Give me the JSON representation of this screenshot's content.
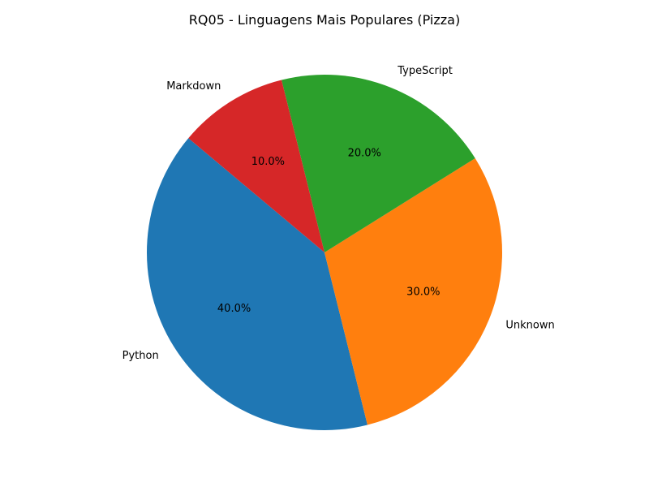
{
  "chart_data": {
    "type": "pie",
    "title": "RQ05 - Linguagens Mais Populares (Pizza)",
    "slices": [
      {
        "label": "Python",
        "value": 40.0,
        "pct_label": "40.0%",
        "color": "#1f77b4"
      },
      {
        "label": "Unknown",
        "value": 30.0,
        "pct_label": "30.0%",
        "color": "#ff7f0e"
      },
      {
        "label": "TypeScript",
        "value": 20.0,
        "pct_label": "20.0%",
        "color": "#2ca02c"
      },
      {
        "label": "Markdown",
        "value": 10.0,
        "pct_label": "10.0%",
        "color": "#d62728"
      }
    ],
    "start_angle_deg": 140,
    "direction": "counterclockwise",
    "legend": "none"
  }
}
